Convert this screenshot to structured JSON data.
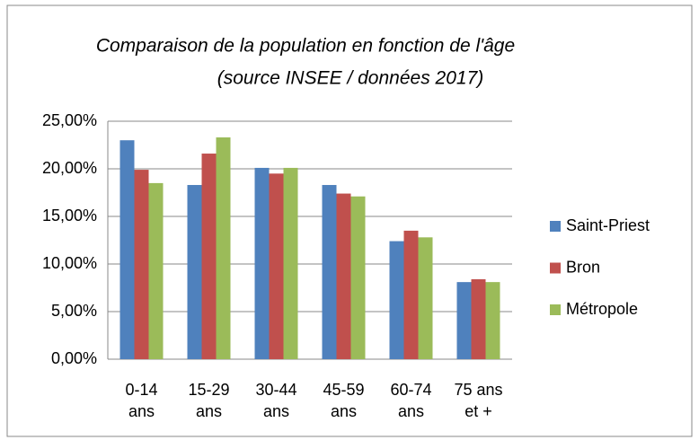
{
  "chart_data": {
    "type": "bar",
    "title": "Comparaison de la population en fonction de l'âge",
    "subtitle": "(source INSEE / données 2017)",
    "categories": [
      "0-14 ans",
      "15-29 ans",
      "30-44 ans",
      "45-59 ans",
      "60-74 ans",
      "75 ans et +"
    ],
    "series": [
      {
        "name": "Saint-Priest",
        "color": "#4f81bd",
        "values": [
          23.0,
          18.3,
          20.1,
          18.3,
          12.4,
          8.1
        ]
      },
      {
        "name": "Bron",
        "color": "#c0504d",
        "values": [
          19.9,
          21.6,
          19.5,
          17.4,
          13.5,
          8.4
        ]
      },
      {
        "name": "Métropole",
        "color": "#9bbb59",
        "values": [
          18.5,
          23.3,
          20.1,
          17.1,
          12.8,
          8.1
        ]
      }
    ],
    "ylim": [
      0,
      25
    ],
    "yticks": [
      {
        "value": 0,
        "label": "0,00%"
      },
      {
        "value": 5,
        "label": "5,00%"
      },
      {
        "value": 10,
        "label": "10,00%"
      },
      {
        "value": 15,
        "label": "15,00%"
      },
      {
        "value": 20,
        "label": "20,00%"
      },
      {
        "value": 25,
        "label": "25,00%"
      }
    ],
    "grid": true,
    "legend": "right"
  }
}
